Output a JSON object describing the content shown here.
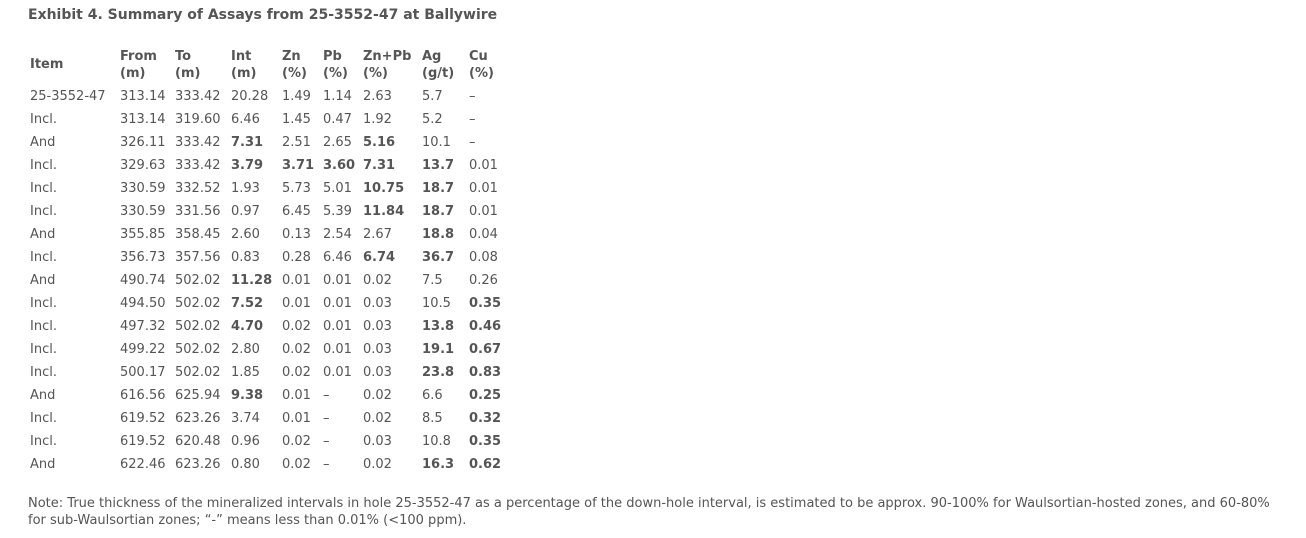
{
  "title": "Exhibit 4. Summary of Assays from 25-3552-47 at Ballywire",
  "table": {
    "header": [
      [
        "Item"
      ],
      [
        "From",
        "(m)"
      ],
      [
        "To",
        "(m)"
      ],
      [
        "Int",
        "(m)"
      ],
      [
        "Zn",
        "(%)"
      ],
      [
        "Pb",
        "(%)"
      ],
      [
        "Zn+Pb",
        "(%)"
      ],
      [
        "Ag",
        "(g/t)"
      ],
      [
        "Cu",
        "(%)"
      ]
    ],
    "rows": [
      [
        "25-3552-47",
        "313.14",
        "333.42",
        "20.28",
        "1.49",
        "1.14",
        "2.63",
        "5.7",
        "–"
      ],
      [
        "Incl.",
        "313.14",
        "319.60",
        "6.46",
        "1.45",
        "0.47",
        "1.92",
        "5.2",
        "–"
      ],
      [
        "And",
        "326.11",
        "333.42",
        "7.31",
        "2.51",
        "2.65",
        "5.16",
        "10.1",
        "–"
      ],
      [
        "Incl.",
        "329.63",
        "333.42",
        "3.79",
        "3.71",
        "3.60",
        "7.31",
        "13.7",
        "0.01"
      ],
      [
        "Incl.",
        "330.59",
        "332.52",
        "1.93",
        "5.73",
        "5.01",
        "10.75",
        "18.7",
        "0.01"
      ],
      [
        "Incl.",
        "330.59",
        "331.56",
        "0.97",
        "6.45",
        "5.39",
        "11.84",
        "18.7",
        "0.01"
      ],
      [
        "And",
        "355.85",
        "358.45",
        "2.60",
        "0.13",
        "2.54",
        "2.67",
        "18.8",
        "0.04"
      ],
      [
        "Incl.",
        "356.73",
        "357.56",
        "0.83",
        "0.28",
        "6.46",
        "6.74",
        "36.7",
        "0.08"
      ],
      [
        "And",
        "490.74",
        "502.02",
        "11.28",
        "0.01",
        "0.01",
        "0.02",
        "7.5",
        "0.26"
      ],
      [
        "Incl.",
        "494.50",
        "502.02",
        "7.52",
        "0.01",
        "0.01",
        "0.03",
        "10.5",
        "0.35"
      ],
      [
        "Incl.",
        "497.32",
        "502.02",
        "4.70",
        "0.02",
        "0.01",
        "0.03",
        "13.8",
        "0.46"
      ],
      [
        "Incl.",
        "499.22",
        "502.02",
        "2.80",
        "0.02",
        "0.01",
        "0.03",
        "19.1",
        "0.67"
      ],
      [
        "Incl.",
        "500.17",
        "502.02",
        "1.85",
        "0.02",
        "0.01",
        "0.03",
        "23.8",
        "0.83"
      ],
      [
        "And",
        "616.56",
        "625.94",
        "9.38",
        "0.01",
        "–",
        "0.02",
        "6.6",
        "0.25"
      ],
      [
        "Incl.",
        "619.52",
        "623.26",
        "3.74",
        "0.01",
        "–",
        "0.02",
        "8.5",
        "0.32"
      ],
      [
        "Incl.",
        "619.52",
        "620.48",
        "0.96",
        "0.02",
        "–",
        "0.03",
        "10.8",
        "0.35"
      ],
      [
        "And",
        "622.46",
        "623.26",
        "0.80",
        "0.02",
        "–",
        "0.02",
        "16.3",
        "0.62"
      ]
    ],
    "bold": [
      [],
      [],
      [
        3,
        6
      ],
      [
        3,
        4,
        5,
        6,
        7
      ],
      [
        6,
        7
      ],
      [
        6,
        7
      ],
      [
        7
      ],
      [
        6,
        7
      ],
      [
        3
      ],
      [
        3,
        8
      ],
      [
        3,
        7,
        8
      ],
      [
        7,
        8
      ],
      [
        7,
        8
      ],
      [
        3,
        8
      ],
      [
        8
      ],
      [
        8
      ],
      [
        7,
        8
      ]
    ]
  },
  "note": "Note: True thickness of the mineralized intervals in hole 25-3552-47 as a percentage of the down-hole interval, is estimated to be approx. 90-100% for Waulsortian-hosted zones, and 60-80% for sub-Waulsortian zones; “-” means less than 0.01% (<100 ppm)."
}
